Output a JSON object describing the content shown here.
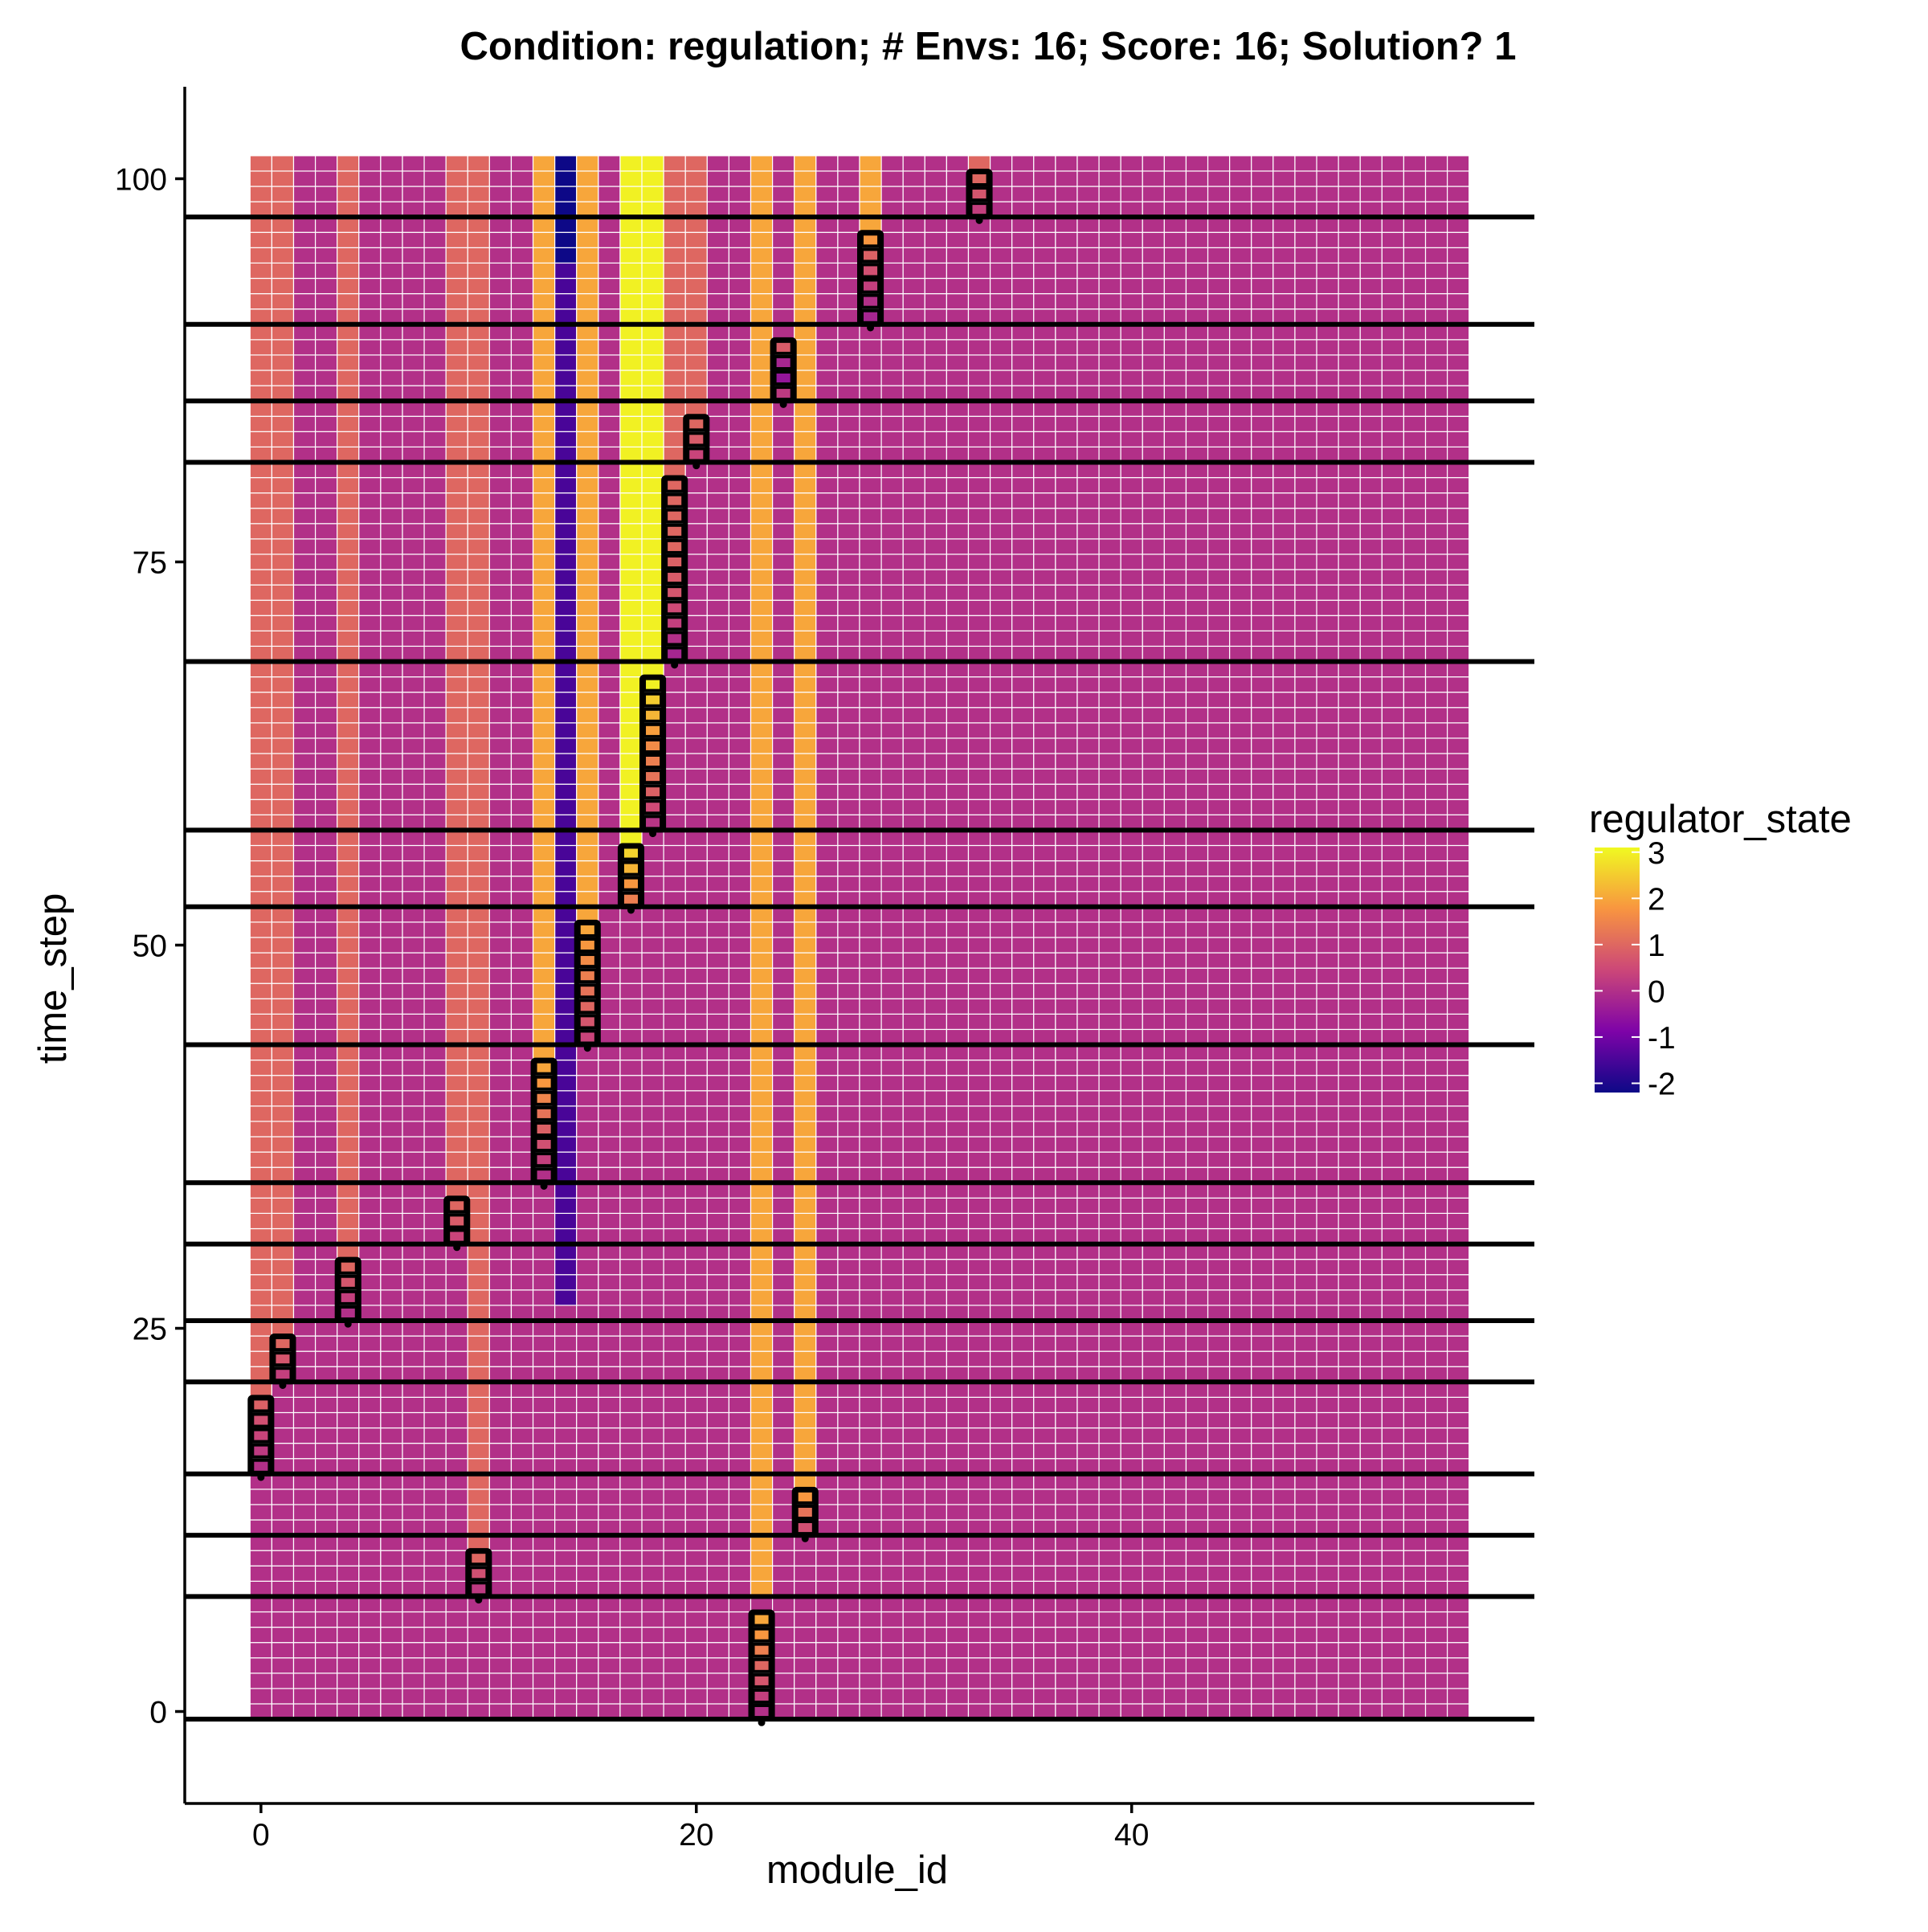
{
  "chart_data": {
    "type": "heatmap",
    "title": "Condition: regulation; # Envs: 16; Score: 16; Solution? 1",
    "xlabel": "module_id",
    "ylabel": "time_step",
    "xlim": [
      -3.5,
      58.5
    ],
    "ylim": [
      -6,
      106
    ],
    "x_ticks": [
      0,
      20,
      40
    ],
    "y_ticks": [
      0,
      25,
      50,
      75,
      100
    ],
    "grid": false,
    "legend": {
      "title": "regulator_state",
      "placement": "right",
      "range": [
        -2.2,
        3.1
      ],
      "ticks": [
        3,
        2,
        1,
        0,
        -1,
        -2
      ],
      "colors": [
        "#0d0887",
        "#7e03a8",
        "#cc4778",
        "#f89540",
        "#f0f921"
      ]
    },
    "heatmap": {
      "modules": [
        0,
        55
      ],
      "time_steps": [
        8,
        101
      ],
      "background_value": 0,
      "column_values": [
        {
          "module": 0,
          "value": 1,
          "from": 16
        },
        {
          "module": 1,
          "value": 1,
          "from": 22
        },
        {
          "module": 4,
          "value": 1,
          "from": 26
        },
        {
          "module": 9,
          "value": 1,
          "from": 31
        },
        {
          "module": 10,
          "value": 1,
          "from": 8
        },
        {
          "module": 13,
          "value": 2,
          "from": 35
        },
        {
          "module": 14,
          "value": -1.5,
          "from": 27
        },
        {
          "module": 15,
          "value": 2,
          "from": 44
        },
        {
          "module": 17,
          "value": 3,
          "from": 53
        },
        {
          "module": 18,
          "value": 3,
          "from": 58
        },
        {
          "module": 19,
          "value": 1,
          "from": 69
        },
        {
          "module": 20,
          "value": 1,
          "from": 82
        },
        {
          "module": 23,
          "value": 2,
          "from": 8
        },
        {
          "module": 25,
          "value": 2,
          "from": 12
        },
        {
          "module": 28,
          "value": 2,
          "from": 91
        },
        {
          "module": 33,
          "value": 1,
          "from": 98
        }
      ],
      "top_overrides": [
        {
          "module": 14,
          "from": 95,
          "value": -2.2
        }
      ]
    },
    "env_boundaries": [
      -0.5,
      7.5,
      11.5,
      15.5,
      21.5,
      25.5,
      30.5,
      34.5,
      43.5,
      52.5,
      57.5,
      68.5,
      81.5,
      85.5,
      90.5,
      97.5
    ],
    "highlights": [
      {
        "module": 23,
        "start": 0,
        "end": 6,
        "values": [
          0,
          0.3,
          0.7,
          1,
          1.4,
          1.8,
          2
        ]
      },
      {
        "module": 10,
        "start": 8,
        "end": 10,
        "values": [
          0.2,
          0.6,
          1
        ]
      },
      {
        "module": 25,
        "start": 12,
        "end": 14,
        "values": [
          0.6,
          1.2,
          1.8
        ]
      },
      {
        "module": 0,
        "start": 16,
        "end": 20,
        "values": [
          0,
          0.2,
          0.4,
          0.6,
          0.9
        ]
      },
      {
        "module": 1,
        "start": 22,
        "end": 24,
        "values": [
          0.3,
          0.7,
          1
        ]
      },
      {
        "module": 4,
        "start": 26,
        "end": 29,
        "values": [
          0,
          0.3,
          0.7,
          1
        ]
      },
      {
        "module": 9,
        "start": 31,
        "end": 33,
        "values": [
          0.4,
          0.8,
          1
        ]
      },
      {
        "module": 13,
        "start": 35,
        "end": 42,
        "values": [
          0,
          0.3,
          0.6,
          0.9,
          1.2,
          1.5,
          1.8,
          2
        ]
      },
      {
        "module": 15,
        "start": 44,
        "end": 51,
        "values": [
          0.4,
          0.7,
          1,
          1.2,
          1.4,
          1.6,
          1.8,
          2
        ]
      },
      {
        "module": 17,
        "start": 53,
        "end": 56,
        "values": [
          1.4,
          1.8,
          2.2,
          2.6
        ]
      },
      {
        "module": 18,
        "start": 58,
        "end": 67,
        "values": [
          0.1,
          0.5,
          0.9,
          1.2,
          1.4,
          1.6,
          1.9,
          2.2,
          2.5,
          3
        ]
      },
      {
        "module": 19,
        "start": 69,
        "end": 80,
        "values": [
          -0.2,
          0,
          0.3,
          0.5,
          0.7,
          0.8,
          0.9,
          1,
          1,
          1,
          1,
          1
        ]
      },
      {
        "module": 20,
        "start": 82,
        "end": 84,
        "values": [
          0.4,
          0.8,
          1
        ]
      },
      {
        "module": 24,
        "start": 86,
        "end": 89,
        "values": [
          0.2,
          -0.5,
          -0.2,
          0.8
        ]
      },
      {
        "module": 28,
        "start": 91,
        "end": 96,
        "values": [
          -0.2,
          0,
          0.3,
          0.6,
          0.9,
          1.8
        ]
      },
      {
        "module": 33,
        "start": 98,
        "end": 100,
        "values": [
          0.3,
          0.7,
          1
        ]
      }
    ]
  }
}
